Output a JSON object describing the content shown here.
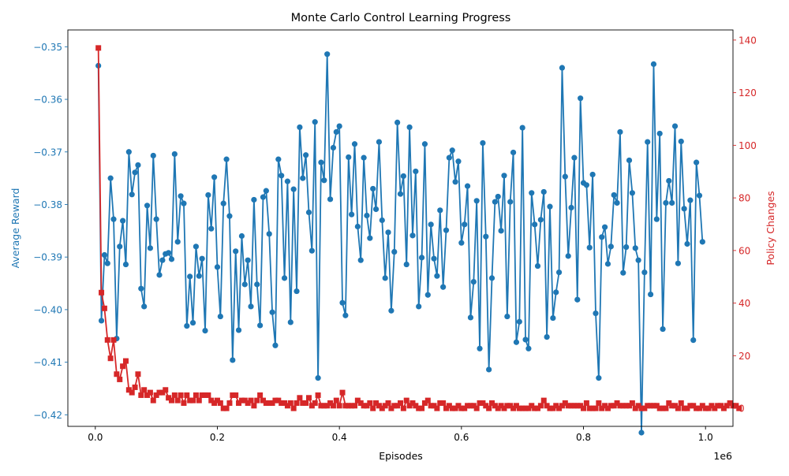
{
  "chart_data": {
    "type": "line",
    "title": "Monte Carlo Control Learning Progress",
    "xlabel": "Episodes",
    "x_offset_label": "1e6",
    "x_ticks": [
      0.0,
      0.2,
      0.4,
      0.6,
      0.8,
      1.0
    ],
    "x_tick_labels": [
      "0.0",
      "0.2",
      "0.4",
      "0.6",
      "0.8",
      "1.0"
    ],
    "xlim": [
      -0.045,
      1.045
    ],
    "grid": false,
    "y_left": {
      "label": "Average Reward",
      "color": "#1f77b4",
      "lim": [
        -0.4222,
        -0.3468
      ],
      "ticks": [
        -0.35,
        -0.36,
        -0.37,
        -0.38,
        -0.39,
        -0.4,
        -0.41,
        -0.42
      ],
      "tick_labels": [
        "−0.35",
        "−0.36",
        "−0.37",
        "−0.38",
        "−0.39",
        "−0.40",
        "−0.41",
        "−0.42"
      ]
    },
    "y_right": {
      "label": "Policy Changes",
      "color": "#d62728",
      "lim": [
        -6.85,
        143.85
      ],
      "ticks": [
        0,
        20,
        40,
        60,
        80,
        100,
        120,
        140
      ],
      "tick_labels": [
        "0",
        "20",
        "40",
        "60",
        "80",
        "100",
        "120",
        "140"
      ]
    },
    "x_start": 0.005,
    "x_step": 0.005,
    "series": [
      {
        "axis": "left",
        "marker": "circle",
        "color": "#1f77b4",
        "values": [
          -0.3536,
          -0.4021,
          -0.3896,
          -0.3912,
          -0.375,
          -0.3828,
          -0.4055,
          -0.388,
          -0.3831,
          -0.3914,
          -0.37,
          -0.3781,
          -0.3739,
          -0.3725,
          -0.396,
          -0.3994,
          -0.3802,
          -0.3883,
          -0.3707,
          -0.3828,
          -0.3934,
          -0.3906,
          -0.3894,
          -0.3892,
          -0.3904,
          -0.3704,
          -0.3871,
          -0.3784,
          -0.3798,
          -0.4031,
          -0.3937,
          -0.4025,
          -0.388,
          -0.3936,
          -0.3903,
          -0.404,
          -0.3782,
          -0.3846,
          -0.3748,
          -0.3919,
          -0.4013,
          -0.3798,
          -0.3714,
          -0.3822,
          -0.4096,
          -0.3889,
          -0.4039,
          -0.386,
          -0.3952,
          -0.3906,
          -0.3994,
          -0.3791,
          -0.3952,
          -0.403,
          -0.3786,
          -0.3774,
          -0.3856,
          -0.4005,
          -0.4068,
          -0.3714,
          -0.3745,
          -0.394,
          -0.3756,
          -0.4024,
          -0.3771,
          -0.3965,
          -0.3653,
          -0.375,
          -0.3706,
          -0.3815,
          -0.3888,
          -0.3643,
          -0.413,
          -0.372,
          -0.3754,
          -0.3514,
          -0.379,
          -0.3692,
          -0.3662,
          -0.3651,
          -0.3987,
          -0.4011,
          -0.371,
          -0.3819,
          -0.3685,
          -0.3842,
          -0.3906,
          -0.3711,
          -0.3821,
          -0.3864,
          -0.377,
          -0.3809,
          -0.3681,
          -0.383,
          -0.394,
          -0.3853,
          -0.4002,
          -0.389,
          -0.3644,
          -0.378,
          -0.3746,
          -0.3914,
          -0.3653,
          -0.3859,
          -0.3737,
          -0.3994,
          -0.3901,
          -0.3685,
          -0.3972,
          -0.3838,
          -0.3903,
          -0.3936,
          -0.3811,
          -0.3957,
          -0.3849,
          -0.3711,
          -0.3697,
          -0.3757,
          -0.3718,
          -0.3873,
          -0.3838,
          -0.3765,
          -0.4015,
          -0.3947,
          -0.3793,
          -0.4074,
          -0.3683,
          -0.3861,
          -0.4114,
          -0.394,
          -0.3795,
          -0.3785,
          -0.385,
          -0.3745,
          -0.4013,
          -0.3795,
          -0.3701,
          -0.4062,
          -0.4023,
          -0.3654,
          -0.4057,
          -0.4074,
          -0.3778,
          -0.3838,
          -0.3917,
          -0.3829,
          -0.3776,
          -0.4052,
          -0.3804,
          -0.4016,
          -0.3967,
          -0.3929,
          -0.354,
          -0.3747,
          -0.3898,
          -0.3806,
          -0.3711,
          -0.3981,
          -0.3598,
          -0.3759,
          -0.3763,
          -0.3882,
          -0.3743,
          -0.4007,
          -0.413,
          -0.3862,
          -0.3843,
          -0.3913,
          -0.388,
          -0.3782,
          -0.3797,
          -0.3662,
          -0.393,
          -0.3881,
          -0.3716,
          -0.3778,
          -0.3883,
          -0.3906,
          -0.4234,
          -0.3929,
          -0.3681,
          -0.3971,
          -0.3533,
          -0.3828,
          -0.3665,
          -0.4037,
          -0.3797,
          -0.3755,
          -0.3797,
          -0.3651,
          -0.3912,
          -0.368,
          -0.3808,
          -0.3875,
          -0.3792,
          -0.4058,
          -0.372,
          -0.3783,
          -0.3871
        ]
      },
      {
        "axis": "right",
        "marker": "square",
        "color": "#d62728",
        "values": [
          137,
          44,
          38,
          26,
          19,
          26,
          13,
          11,
          16,
          18,
          7,
          6,
          8,
          13,
          5,
          7,
          5,
          6,
          3,
          5,
          6,
          6,
          7,
          4,
          3,
          5,
          3,
          5,
          2,
          5,
          3,
          3,
          5,
          3,
          5,
          5,
          5,
          3,
          2,
          3,
          2,
          0,
          0,
          2,
          5,
          5,
          2,
          3,
          3,
          2,
          3,
          1,
          3,
          5,
          3,
          2,
          2,
          2,
          3,
          3,
          2,
          2,
          1,
          2,
          0,
          2,
          4,
          2,
          2,
          4,
          1,
          2,
          5,
          1,
          1,
          1,
          2,
          1,
          3,
          1,
          6,
          1,
          1,
          1,
          1,
          3,
          2,
          1,
          1,
          2,
          0,
          2,
          1,
          0,
          1,
          2,
          0,
          1,
          1,
          2,
          0,
          3,
          1,
          2,
          1,
          0,
          0,
          2,
          3,
          1,
          1,
          0,
          2,
          2,
          0,
          1,
          0,
          0,
          1,
          0,
          0,
          1,
          1,
          1,
          0,
          2,
          2,
          1,
          0,
          2,
          1,
          0,
          1,
          0,
          1,
          1,
          0,
          1,
          0,
          0,
          0,
          0,
          1,
          0,
          0,
          1,
          3,
          1,
          0,
          0,
          1,
          0,
          1,
          2,
          1,
          1,
          1,
          1,
          1,
          0,
          2,
          0,
          0,
          0,
          2,
          0,
          1,
          0,
          1,
          1,
          2,
          1,
          1,
          1,
          1,
          2,
          0,
          1,
          0,
          0,
          1,
          1,
          1,
          1,
          0,
          0,
          0,
          2,
          1,
          1,
          0,
          2,
          0,
          0,
          1,
          1,
          0,
          0,
          1,
          0,
          0,
          1,
          0,
          1,
          1,
          0,
          1,
          2,
          1,
          1,
          0
        ]
      }
    ]
  }
}
